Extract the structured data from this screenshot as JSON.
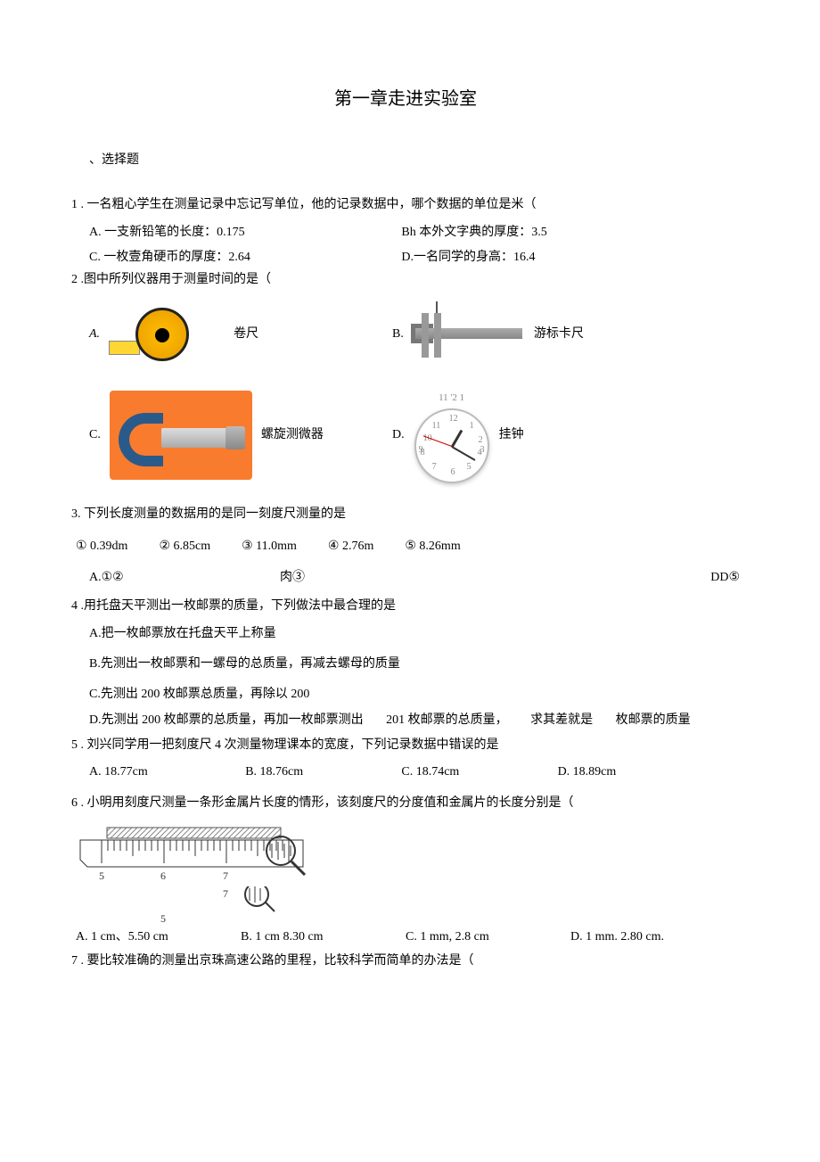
{
  "title": "第一章走进实验室",
  "section1": "、选择题",
  "q1": {
    "stem": "1 . 一名粗心学生在测量记录中忘记写单位，他的记录数据中，哪个数据的单位是米（",
    "A": "A. 一支新铅笔的长度：0.175",
    "B": "Bh 本外文字典的厚度：3.5",
    "C": "C. 一枚壹角硬币的厚度：2.64",
    "D": "D.一名同学的身高：16.4"
  },
  "q2": {
    "stem": "2 .图中所列仪器用于测量时间的是（",
    "A": {
      "letter": "A.",
      "label": "卷尺"
    },
    "B": {
      "letter": "B.",
      "label": "游标卡尺"
    },
    "C": {
      "letter": "C.",
      "label": "螺旋测微器"
    },
    "D": {
      "letter": "D.",
      "label": "挂钟",
      "time": "11 '2 1"
    }
  },
  "q3": {
    "stem": "3. 下列长度测量的数据用的是同一刻度尺测量的是",
    "o1": "① 0.39dm",
    "o2": "② 6.85cm",
    "o3": "③ 11.0mm",
    "o4": "④ 2.76m",
    "o5": "⑤ 8.26mm",
    "A": "A.①②",
    "B": "肉③",
    "D": "DD⑤"
  },
  "q4": {
    "stem": "4 .用托盘天平测出一枚邮票的质量，下列做法中最合理的是",
    "A": "A.把一枚邮票放在托盘天平上称量",
    "B": "B.先测出一枚邮票和一螺母的总质量，再减去螺母的质量",
    "C": "C.先测出 200 枚邮票总质量，再除以 200",
    "D1": "D.先测出 200 枚邮票的总质量，再加一枚邮票测出",
    "D2": "201 枚邮票的总质量，",
    "D3": "求其差就是",
    "D4": "枚邮票的质量"
  },
  "q5": {
    "stem": "5 . 刘兴同学用一把刻度尺 4 次测量物理课本的宽度，下列记录数据中错误的是",
    "A": "A. 18.77cm",
    "B": "B. 18.76cm",
    "C": "C. 18.74cm",
    "D": "D. 18.89cm"
  },
  "q6": {
    "stem": "6 . 小明用刻度尺测量一条形金属片长度的情形，该刻度尺的分度值和金属片的长度分别是（",
    "A": "A. 1 cm、5.50 cm",
    "B": "B. 1 cm 8.30 cm",
    "C": "C. 1 mm, 2.8 cm",
    "D": "D. 1 mm. 2.80 cm."
  },
  "q7": {
    "stem": "7 . 要比较准确的测量出京珠高速公路的里程，比较科学而简单的办法是（"
  },
  "ruler": {
    "start": 5,
    "end": 8,
    "minor_per_major": 10
  }
}
